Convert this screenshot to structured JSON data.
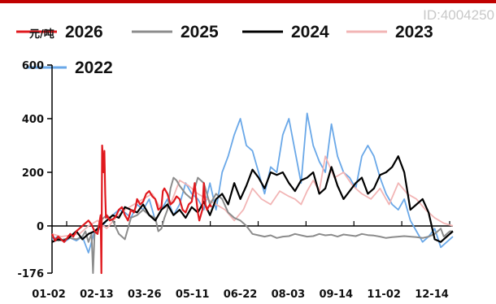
{
  "watermark": "ID:4004250",
  "chart_data": {
    "type": "line",
    "unit": "元/吨",
    "ylim": [
      -176,
      600
    ],
    "y_ticks": [
      600,
      400,
      200,
      0,
      -176
    ],
    "x_ticks": [
      "01-02",
      "02-13",
      "03-26",
      "05-11",
      "06-22",
      "08-03",
      "09-14",
      "11-02",
      "12-14"
    ],
    "legend_placement": "top",
    "series": [
      {
        "name": "2026",
        "color": "#e0191e",
        "width": 2.2,
        "x": [
          0,
          2,
          4,
          6,
          8,
          10,
          12,
          14,
          16,
          18,
          20,
          22,
          24,
          26,
          28,
          30,
          32,
          32.5,
          33,
          34,
          34.5,
          35,
          35.5,
          36,
          38,
          40,
          42,
          44,
          46,
          48,
          50,
          52,
          54,
          55,
          56,
          58,
          60,
          62,
          64,
          66,
          68,
          70,
          72,
          73,
          74,
          76,
          78,
          80,
          82,
          84,
          86,
          88,
          90,
          92,
          94,
          95,
          96,
          97,
          98,
          99,
          100,
          101,
          102,
          104,
          105
        ],
        "values": [
          -30,
          -55,
          -40,
          -50,
          -60,
          -45,
          -30,
          -40,
          -20,
          -10,
          0,
          10,
          20,
          5,
          -20,
          -30,
          40,
          -176,
          300,
          200,
          280,
          120,
          30,
          40,
          20,
          25,
          35,
          60,
          70,
          40,
          20,
          60,
          50,
          70,
          100,
          80,
          90,
          120,
          130,
          110,
          100,
          60,
          70,
          130,
          140,
          120,
          80,
          90,
          110,
          100,
          60,
          50,
          80,
          90,
          160,
          100,
          50,
          20,
          40,
          60,
          160,
          80,
          60,
          80,
          70
        ]
      },
      {
        "name": "2025",
        "color": "#8c8c8c",
        "width": 2,
        "x": [
          0,
          4,
          8,
          12,
          16,
          20,
          22,
          24,
          26,
          27,
          28,
          29,
          30,
          32,
          36,
          40,
          44,
          48,
          52,
          56,
          60,
          64,
          68,
          70,
          72,
          74,
          76,
          78,
          80,
          82,
          84,
          88,
          92,
          96,
          100,
          104,
          108,
          112,
          116,
          120,
          124,
          128,
          132,
          136,
          140,
          144,
          148,
          152,
          156,
          160,
          164,
          168,
          172,
          176,
          180,
          184,
          188,
          192,
          196,
          200,
          204,
          208,
          212,
          216,
          220,
          224,
          228,
          232,
          236,
          240,
          244,
          248,
          252,
          256,
          258,
          260,
          262,
          264
        ],
        "values": [
          -40,
          -55,
          -50,
          -45,
          -50,
          -40,
          -20,
          -60,
          -30,
          -176,
          -30,
          -20,
          -10,
          20,
          40,
          20,
          -30,
          -50,
          30,
          40,
          60,
          40,
          30,
          -20,
          -10,
          30,
          60,
          140,
          180,
          170,
          150,
          120,
          100,
          180,
          160,
          80,
          120,
          100,
          50,
          30,
          20,
          0,
          -30,
          -35,
          -40,
          -35,
          -45,
          -40,
          -38,
          -30,
          -35,
          -40,
          -38,
          -30,
          -35,
          -33,
          -40,
          -32,
          -35,
          -38,
          -30,
          -34,
          -36,
          -40,
          -45,
          -42,
          -40,
          -38,
          -40,
          -42,
          -45,
          -40,
          -30,
          -10,
          -40,
          -30,
          -20,
          -20
        ]
      },
      {
        "name": "2024",
        "color": "#000000",
        "width": 2.2,
        "x": [
          0,
          4,
          8,
          12,
          16,
          20,
          24,
          28,
          32,
          36,
          40,
          44,
          48,
          52,
          56,
          60,
          64,
          68,
          72,
          76,
          80,
          84,
          88,
          92,
          96,
          100,
          104,
          108,
          112,
          116,
          120,
          124,
          128,
          132,
          136,
          140,
          144,
          148,
          152,
          156,
          160,
          164,
          168,
          172,
          176,
          180,
          184,
          188,
          192,
          196,
          200,
          204,
          208,
          212,
          216,
          220,
          224,
          228,
          232,
          236,
          240,
          244,
          248,
          252,
          256,
          260,
          264
        ],
        "values": [
          -60,
          -50,
          -55,
          -40,
          -20,
          -50,
          -30,
          -20,
          0,
          20,
          40,
          30,
          70,
          60,
          50,
          80,
          40,
          20,
          60,
          80,
          40,
          60,
          30,
          70,
          50,
          90,
          40,
          100,
          120,
          80,
          160,
          100,
          150,
          210,
          180,
          140,
          200,
          190,
          200,
          160,
          130,
          170,
          180,
          200,
          120,
          140,
          220,
          150,
          100,
          130,
          160,
          180,
          120,
          140,
          190,
          200,
          220,
          260,
          200,
          60,
          80,
          100,
          50,
          -50,
          -60,
          -40,
          -20
        ]
      },
      {
        "name": "2023",
        "color": "#f2b5b5",
        "width": 1.8,
        "x": [
          0,
          6,
          12,
          18,
          24,
          30,
          36,
          42,
          48,
          54,
          60,
          66,
          72,
          78,
          84,
          90,
          96,
          102,
          108,
          114,
          120,
          126,
          132,
          138,
          144,
          150,
          156,
          160,
          164,
          168,
          172,
          176,
          180,
          186,
          192,
          198,
          204,
          210,
          216,
          222,
          228,
          234,
          240,
          246,
          252,
          258,
          264
        ],
        "values": [
          -30,
          -40,
          -35,
          -30,
          0,
          20,
          -10,
          30,
          60,
          80,
          100,
          120,
          60,
          80,
          170,
          150,
          120,
          100,
          80,
          60,
          20,
          60,
          140,
          100,
          80,
          130,
          110,
          100,
          80,
          130,
          170,
          130,
          260,
          180,
          200,
          150,
          120,
          100,
          140,
          80,
          160,
          120,
          100,
          60,
          30,
          10,
          0
        ]
      },
      {
        "name": "2022",
        "color": "#6aa8e8",
        "width": 1.8,
        "x": [
          0,
          4,
          8,
          12,
          16,
          20,
          24,
          28,
          32,
          36,
          40,
          44,
          48,
          52,
          56,
          60,
          64,
          68,
          72,
          76,
          80,
          84,
          88,
          92,
          96,
          100,
          104,
          108,
          112,
          116,
          120,
          124,
          128,
          132,
          136,
          140,
          144,
          148,
          152,
          156,
          160,
          164,
          168,
          172,
          176,
          180,
          184,
          188,
          192,
          196,
          200,
          204,
          208,
          212,
          216,
          220,
          224,
          228,
          232,
          236,
          240,
          244,
          248,
          252,
          256,
          260,
          264
        ],
        "values": [
          -50,
          -40,
          -60,
          -45,
          -55,
          -40,
          -100,
          -20,
          -10,
          20,
          40,
          60,
          50,
          30,
          80,
          60,
          100,
          20,
          60,
          100,
          40,
          80,
          160,
          120,
          100,
          60,
          160,
          60,
          200,
          260,
          340,
          400,
          300,
          280,
          200,
          120,
          220,
          200,
          340,
          400,
          280,
          160,
          420,
          300,
          240,
          200,
          380,
          260,
          200,
          180,
          140,
          260,
          300,
          260,
          180,
          120,
          80,
          60,
          100,
          20,
          -20,
          -60,
          -40,
          -10,
          -80,
          -60,
          -40
        ]
      }
    ]
  }
}
